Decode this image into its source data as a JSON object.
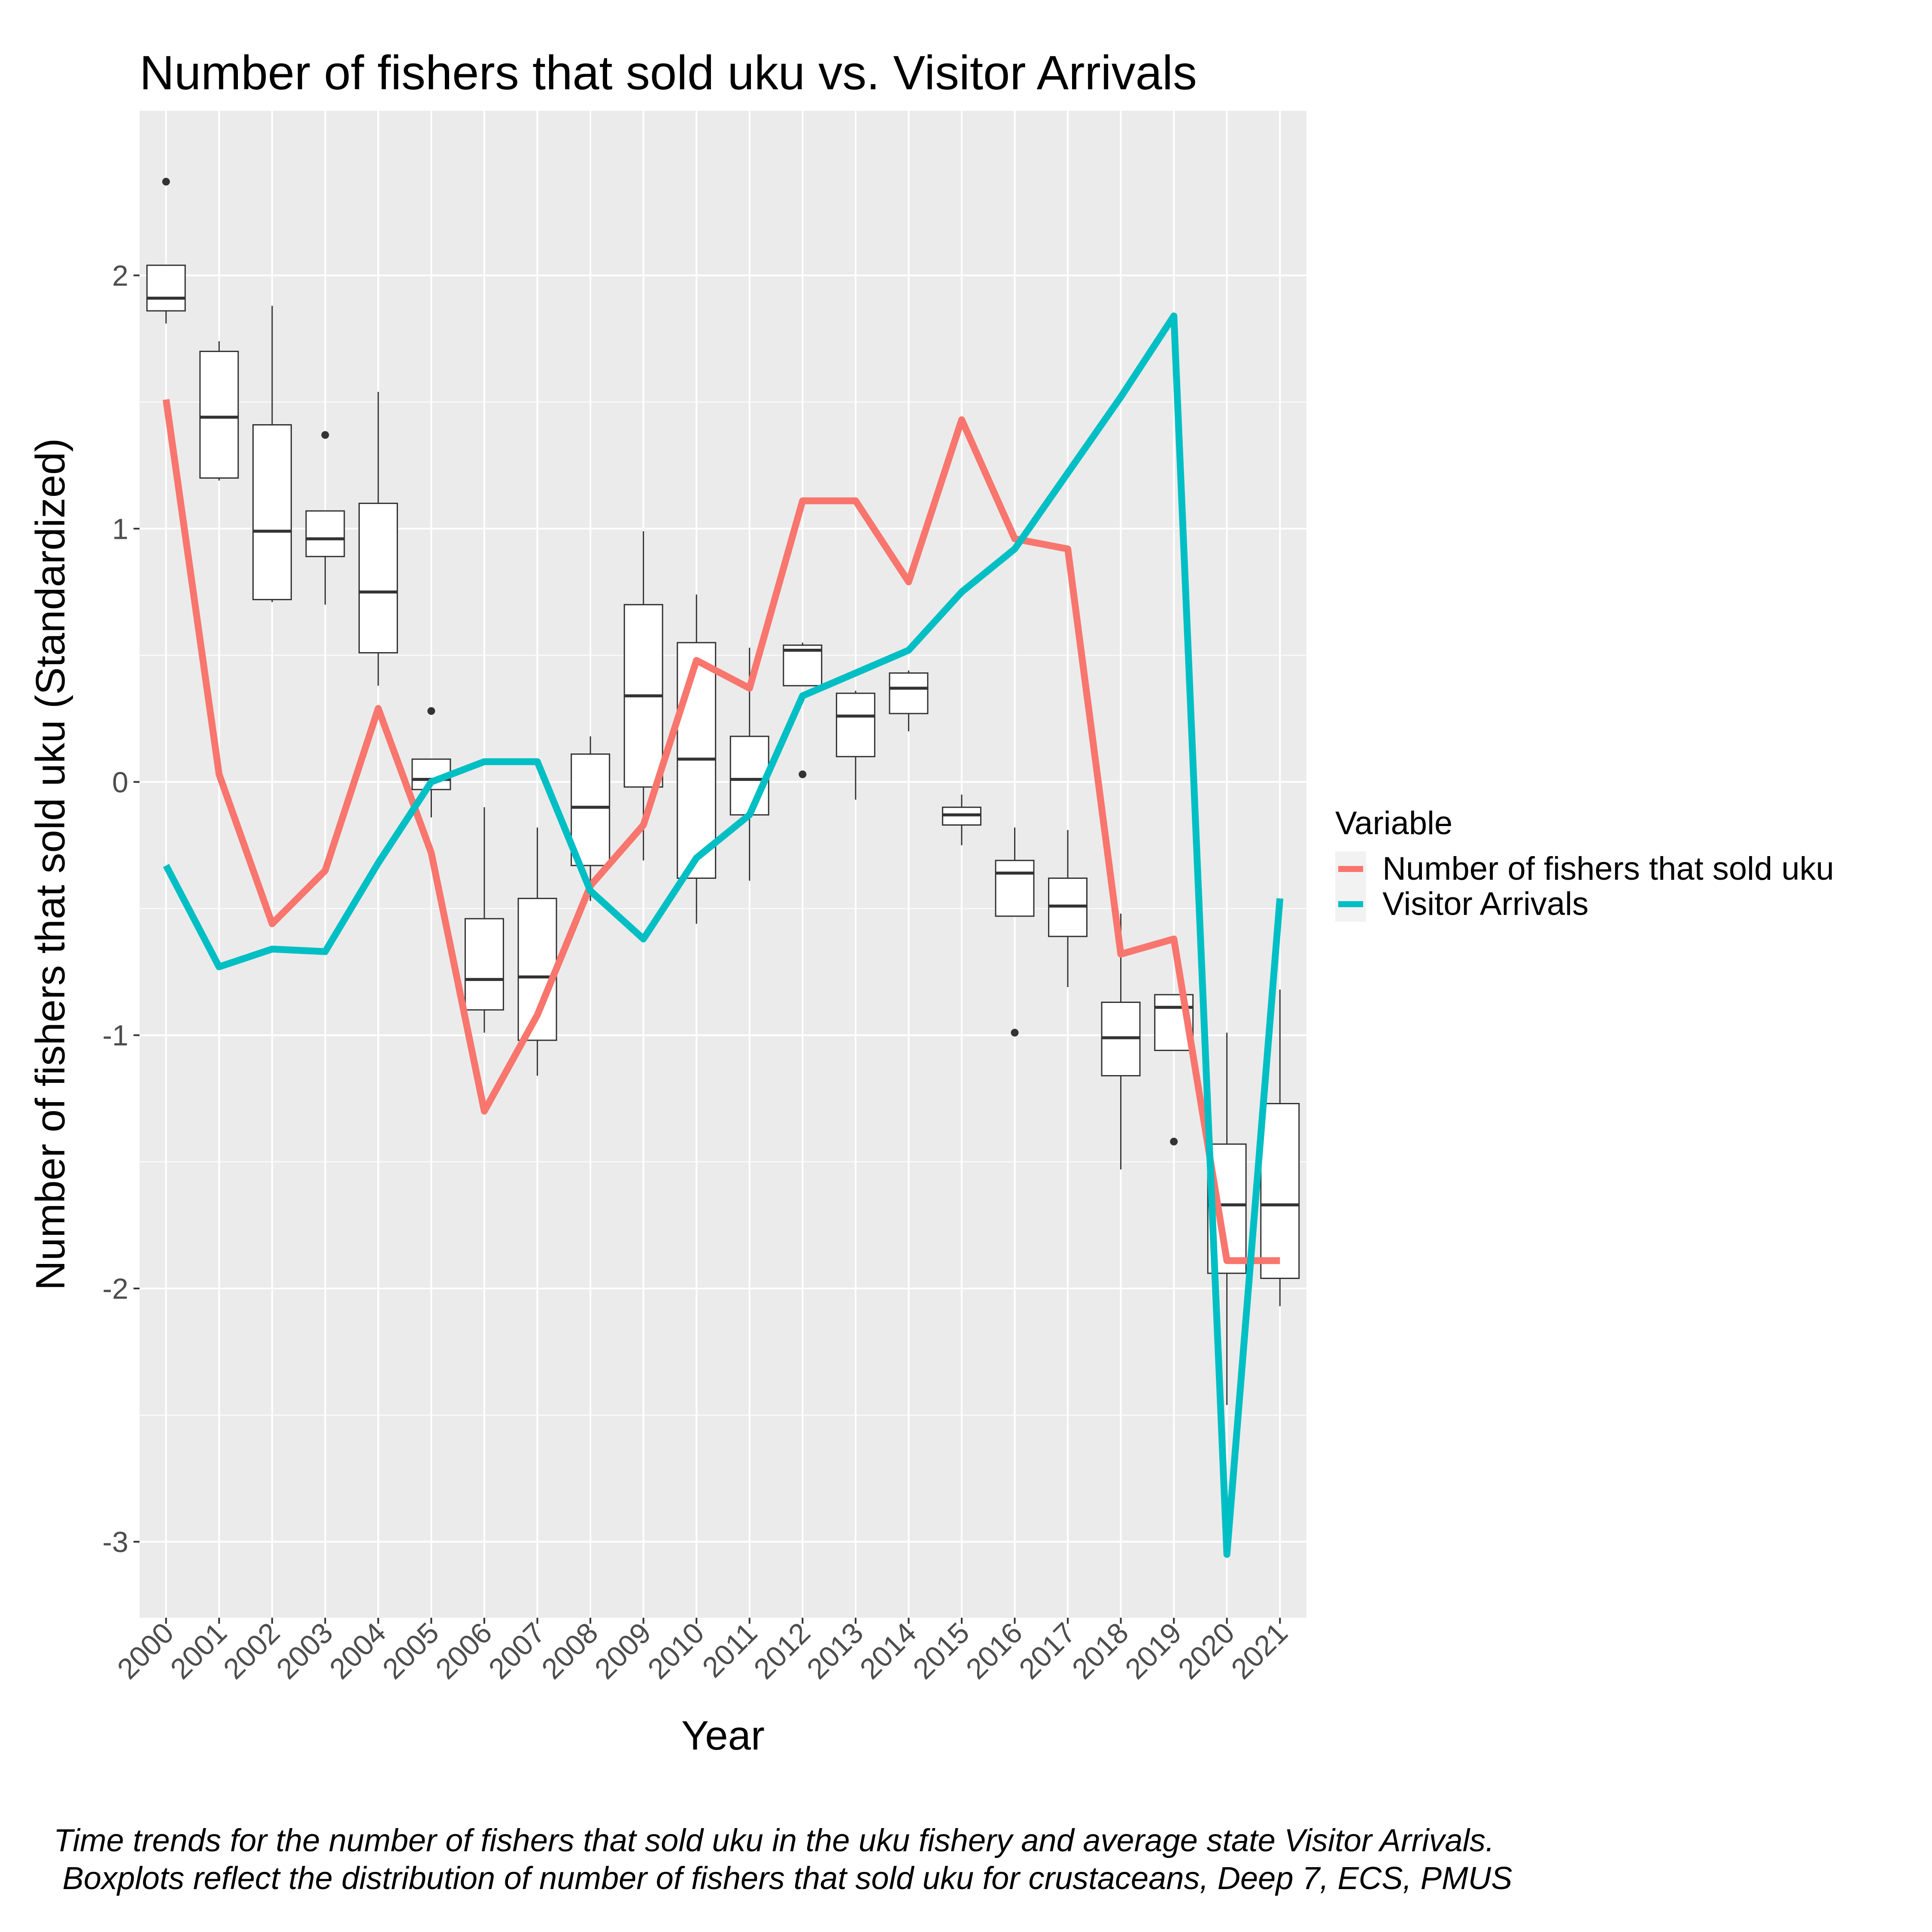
{
  "chart_data": {
    "type": "line",
    "title": "Number of fishers that sold uku vs. Visitor Arrivals",
    "xlabel": "Year",
    "ylabel": "Number of fishers that sold uku (Standardized)",
    "categories": [
      "2000",
      "2001",
      "2002",
      "2003",
      "2004",
      "2005",
      "2006",
      "2007",
      "2008",
      "2009",
      "2010",
      "2011",
      "2012",
      "2013",
      "2014",
      "2015",
      "2016",
      "2017",
      "2018",
      "2019",
      "2020",
      "2021"
    ],
    "y_ticks": [
      "-3",
      "-2",
      "-1",
      "0",
      "1",
      "2"
    ],
    "ylim": [
      -3.3,
      2.65
    ],
    "grid": true,
    "legend_title": "Variable",
    "legend_position": "right",
    "series": [
      {
        "name": "Number of fishers that sold uku",
        "color": "#F8766D",
        "values": [
          1.51,
          0.03,
          -0.56,
          -0.35,
          0.29,
          -0.28,
          -1.3,
          -0.92,
          -0.41,
          -0.17,
          0.48,
          0.37,
          1.11,
          1.11,
          0.79,
          1.43,
          0.96,
          0.92,
          -0.68,
          -0.62,
          -1.89,
          -1.89
        ]
      },
      {
        "name": "Visitor Arrivals",
        "color": "#00BFC4",
        "values": [
          -0.33,
          -0.73,
          -0.66,
          -0.67,
          -0.32,
          0.0,
          0.08,
          0.08,
          -0.43,
          -0.62,
          -0.3,
          -0.13,
          0.34,
          0.43,
          0.52,
          0.75,
          0.92,
          1.22,
          1.52,
          1.84,
          -3.05,
          -0.46
        ]
      }
    ],
    "boxplots": [
      {
        "category": "2000",
        "min": 1.81,
        "q1": 1.86,
        "median": 1.91,
        "q3": 2.04,
        "max": 2.04,
        "outliers": [
          2.37
        ]
      },
      {
        "category": "2001",
        "min": 1.19,
        "q1": 1.2,
        "median": 1.44,
        "q3": 1.7,
        "max": 1.74,
        "outliers": []
      },
      {
        "category": "2002",
        "min": 0.71,
        "q1": 0.72,
        "median": 0.99,
        "q3": 1.41,
        "max": 1.88,
        "outliers": []
      },
      {
        "category": "2003",
        "min": 0.7,
        "q1": 0.89,
        "median": 0.96,
        "q3": 1.07,
        "max": 1.07,
        "outliers": [
          1.37
        ]
      },
      {
        "category": "2004",
        "min": 0.38,
        "q1": 0.51,
        "median": 0.75,
        "q3": 1.1,
        "max": 1.54,
        "outliers": []
      },
      {
        "category": "2005",
        "min": -0.14,
        "q1": -0.03,
        "median": 0.01,
        "q3": 0.09,
        "max": 0.09,
        "outliers": [
          0.28
        ]
      },
      {
        "category": "2006",
        "min": -0.99,
        "q1": -0.9,
        "median": -0.78,
        "q3": -0.54,
        "max": -0.1,
        "outliers": []
      },
      {
        "category": "2007",
        "min": -1.16,
        "q1": -1.02,
        "median": -0.77,
        "q3": -0.46,
        "max": -0.18,
        "outliers": []
      },
      {
        "category": "2008",
        "min": -0.47,
        "q1": -0.33,
        "median": -0.1,
        "q3": 0.11,
        "max": 0.18,
        "outliers": []
      },
      {
        "category": "2009",
        "min": -0.31,
        "q1": -0.02,
        "median": 0.34,
        "q3": 0.7,
        "max": 0.99,
        "outliers": []
      },
      {
        "category": "2010",
        "min": -0.56,
        "q1": -0.38,
        "median": 0.09,
        "q3": 0.55,
        "max": 0.74,
        "outliers": []
      },
      {
        "category": "2011",
        "min": -0.39,
        "q1": -0.13,
        "median": 0.01,
        "q3": 0.18,
        "max": 0.53,
        "outliers": []
      },
      {
        "category": "2012",
        "min": 0.38,
        "q1": 0.38,
        "median": 0.52,
        "q3": 0.54,
        "max": 0.55,
        "outliers": [
          0.03
        ]
      },
      {
        "category": "2013",
        "min": -0.07,
        "q1": 0.1,
        "median": 0.26,
        "q3": 0.35,
        "max": 0.36,
        "outliers": []
      },
      {
        "category": "2014",
        "min": 0.2,
        "q1": 0.27,
        "median": 0.37,
        "q3": 0.43,
        "max": 0.44,
        "outliers": []
      },
      {
        "category": "2015",
        "min": -0.25,
        "q1": -0.17,
        "median": -0.13,
        "q3": -0.1,
        "max": -0.05,
        "outliers": []
      },
      {
        "category": "2016",
        "min": -0.53,
        "q1": -0.53,
        "median": -0.36,
        "q3": -0.31,
        "max": -0.18,
        "outliers": [
          -0.99
        ]
      },
      {
        "category": "2017",
        "min": -0.81,
        "q1": -0.61,
        "median": -0.49,
        "q3": -0.38,
        "max": -0.19,
        "outliers": []
      },
      {
        "category": "2018",
        "min": -1.53,
        "q1": -1.16,
        "median": -1.01,
        "q3": -0.87,
        "max": -0.52,
        "outliers": []
      },
      {
        "category": "2019",
        "min": -1.06,
        "q1": -1.06,
        "median": -0.89,
        "q3": -0.84,
        "max": -0.84,
        "outliers": [
          -1.42
        ]
      },
      {
        "category": "2020",
        "min": -2.46,
        "q1": -1.94,
        "median": -1.67,
        "q3": -1.43,
        "max": -0.99,
        "outliers": []
      },
      {
        "category": "2021",
        "min": -2.07,
        "q1": -1.96,
        "median": -1.67,
        "q3": -1.27,
        "max": -0.82,
        "outliers": []
      }
    ],
    "caption_lines": [
      "Time trends for the number of fishers that sold uku in the uku fishery and average state Visitor Arrivals.",
      " Boxplots reflect the distribution of number of fishers that sold uku for crustaceans, Deep 7, ECS, PMUS"
    ]
  }
}
